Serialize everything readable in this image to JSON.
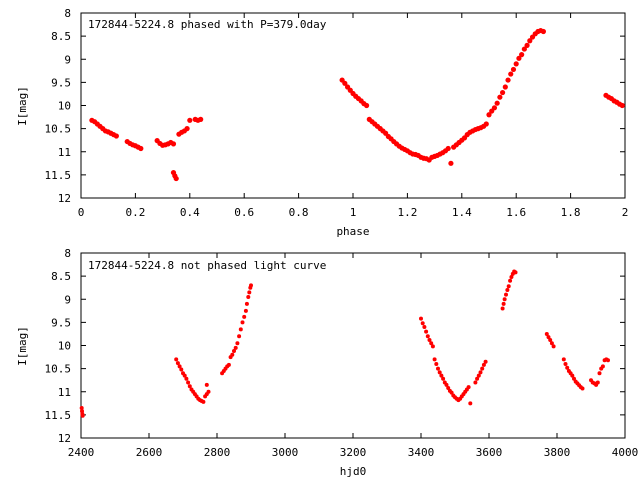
{
  "chart_data": [
    {
      "type": "scatter",
      "title": "172844-5224.8 phased with P=379.0day",
      "xlabel": "phase",
      "ylabel": "I[mag]",
      "xlim": [
        0,
        2
      ],
      "ylim": [
        12,
        8
      ],
      "y_inverted": true,
      "xticks": [
        "0",
        "0.2",
        "0.4",
        "0.6",
        "0.8",
        "1",
        "1.2",
        "1.4",
        "1.6",
        "1.8",
        "2"
      ],
      "yticks": [
        "8",
        "8.5",
        "9",
        "9.5",
        "10",
        "10.5",
        "11",
        "11.5",
        "12"
      ],
      "marker_color": "#ff0000",
      "grid": false,
      "points": [
        [
          0.04,
          10.32
        ],
        [
          0.05,
          10.35
        ],
        [
          0.06,
          10.4
        ],
        [
          0.07,
          10.45
        ],
        [
          0.08,
          10.5
        ],
        [
          0.09,
          10.55
        ],
        [
          0.1,
          10.57
        ],
        [
          0.11,
          10.6
        ],
        [
          0.12,
          10.63
        ],
        [
          0.13,
          10.66
        ],
        [
          0.17,
          10.78
        ],
        [
          0.18,
          10.82
        ],
        [
          0.19,
          10.85
        ],
        [
          0.2,
          10.87
        ],
        [
          0.21,
          10.9
        ],
        [
          0.22,
          10.93
        ],
        [
          0.28,
          10.76
        ],
        [
          0.29,
          10.82
        ],
        [
          0.3,
          10.86
        ],
        [
          0.31,
          10.85
        ],
        [
          0.32,
          10.83
        ],
        [
          0.33,
          10.8
        ],
        [
          0.34,
          10.83
        ],
        [
          0.34,
          11.45
        ],
        [
          0.345,
          11.52
        ],
        [
          0.35,
          11.58
        ],
        [
          0.36,
          10.62
        ],
        [
          0.37,
          10.58
        ],
        [
          0.38,
          10.55
        ],
        [
          0.39,
          10.5
        ],
        [
          0.4,
          10.32
        ],
        [
          0.42,
          10.3
        ],
        [
          0.43,
          10.32
        ],
        [
          0.44,
          10.3
        ],
        [
          0.96,
          9.45
        ],
        [
          0.97,
          9.52
        ],
        [
          0.98,
          9.6
        ],
        [
          0.99,
          9.67
        ],
        [
          1.0,
          9.74
        ],
        [
          1.01,
          9.8
        ],
        [
          1.02,
          9.85
        ],
        [
          1.03,
          9.9
        ],
        [
          1.04,
          9.96
        ],
        [
          1.05,
          10.0
        ],
        [
          1.06,
          10.3
        ],
        [
          1.07,
          10.35
        ],
        [
          1.08,
          10.4
        ],
        [
          1.09,
          10.45
        ],
        [
          1.1,
          10.5
        ],
        [
          1.11,
          10.55
        ],
        [
          1.12,
          10.6
        ],
        [
          1.13,
          10.67
        ],
        [
          1.14,
          10.72
        ],
        [
          1.15,
          10.78
        ],
        [
          1.16,
          10.83
        ],
        [
          1.17,
          10.88
        ],
        [
          1.18,
          10.92
        ],
        [
          1.19,
          10.95
        ],
        [
          1.2,
          10.98
        ],
        [
          1.21,
          11.02
        ],
        [
          1.22,
          11.05
        ],
        [
          1.23,
          11.06
        ],
        [
          1.24,
          11.08
        ],
        [
          1.25,
          11.12
        ],
        [
          1.26,
          11.14
        ],
        [
          1.27,
          11.15
        ],
        [
          1.28,
          11.18
        ],
        [
          1.29,
          11.12
        ],
        [
          1.3,
          11.1
        ],
        [
          1.31,
          11.08
        ],
        [
          1.32,
          11.05
        ],
        [
          1.33,
          11.02
        ],
        [
          1.34,
          10.98
        ],
        [
          1.35,
          10.93
        ],
        [
          1.36,
          11.25
        ],
        [
          1.37,
          10.9
        ],
        [
          1.38,
          10.85
        ],
        [
          1.39,
          10.8
        ],
        [
          1.4,
          10.75
        ],
        [
          1.41,
          10.7
        ],
        [
          1.42,
          10.63
        ],
        [
          1.43,
          10.58
        ],
        [
          1.44,
          10.55
        ],
        [
          1.45,
          10.52
        ],
        [
          1.46,
          10.5
        ],
        [
          1.47,
          10.48
        ],
        [
          1.48,
          10.45
        ],
        [
          1.49,
          10.4
        ],
        [
          1.5,
          10.2
        ],
        [
          1.51,
          10.12
        ],
        [
          1.52,
          10.05
        ],
        [
          1.53,
          9.95
        ],
        [
          1.54,
          9.82
        ],
        [
          1.55,
          9.72
        ],
        [
          1.56,
          9.6
        ],
        [
          1.57,
          9.45
        ],
        [
          1.58,
          9.32
        ],
        [
          1.59,
          9.22
        ],
        [
          1.6,
          9.1
        ],
        [
          1.61,
          8.98
        ],
        [
          1.62,
          8.9
        ],
        [
          1.63,
          8.78
        ],
        [
          1.64,
          8.7
        ],
        [
          1.65,
          8.6
        ],
        [
          1.66,
          8.52
        ],
        [
          1.67,
          8.45
        ],
        [
          1.68,
          8.4
        ],
        [
          1.69,
          8.38
        ],
        [
          1.7,
          8.4
        ],
        [
          1.93,
          9.78
        ],
        [
          1.94,
          9.82
        ],
        [
          1.95,
          9.85
        ],
        [
          1.96,
          9.9
        ],
        [
          1.97,
          9.93
        ],
        [
          1.98,
          9.97
        ],
        [
          1.99,
          10.0
        ]
      ]
    },
    {
      "type": "scatter",
      "title": "172844-5224.8 not phased light curve",
      "xlabel": "hjd0",
      "ylabel": "I[mag]",
      "xlim": [
        2400,
        4000
      ],
      "ylim": [
        12,
        8
      ],
      "y_inverted": true,
      "xticks": [
        "2400",
        "2600",
        "2800",
        "3000",
        "3200",
        "3400",
        "3600",
        "3800",
        "4000"
      ],
      "yticks": [
        "8",
        "8.5",
        "9",
        "9.5",
        "10",
        "10.5",
        "11",
        "11.5",
        "12"
      ],
      "marker_color": "#ff0000",
      "grid": false,
      "points": [
        [
          2402,
          11.35
        ],
        [
          2403,
          11.42
        ],
        [
          2404,
          11.48
        ],
        [
          2405,
          11.52
        ],
        [
          2680,
          10.3
        ],
        [
          2685,
          10.38
        ],
        [
          2690,
          10.45
        ],
        [
          2695,
          10.52
        ],
        [
          2700,
          10.6
        ],
        [
          2705,
          10.65
        ],
        [
          2710,
          10.72
        ],
        [
          2715,
          10.8
        ],
        [
          2720,
          10.88
        ],
        [
          2725,
          10.95
        ],
        [
          2730,
          11.0
        ],
        [
          2735,
          11.05
        ],
        [
          2740,
          11.1
        ],
        [
          2745,
          11.15
        ],
        [
          2750,
          11.18
        ],
        [
          2755,
          11.2
        ],
        [
          2760,
          11.22
        ],
        [
          2765,
          11.1
        ],
        [
          2770,
          11.05
        ],
        [
          2775,
          11.0
        ],
        [
          2770,
          10.85
        ],
        [
          2815,
          10.6
        ],
        [
          2820,
          10.55
        ],
        [
          2825,
          10.5
        ],
        [
          2830,
          10.45
        ],
        [
          2835,
          10.42
        ],
        [
          2840,
          10.25
        ],
        [
          2845,
          10.2
        ],
        [
          2850,
          10.12
        ],
        [
          2855,
          10.05
        ],
        [
          2860,
          9.95
        ],
        [
          2865,
          9.8
        ],
        [
          2870,
          9.65
        ],
        [
          2875,
          9.5
        ],
        [
          2880,
          9.38
        ],
        [
          2885,
          9.25
        ],
        [
          2888,
          9.1
        ],
        [
          2892,
          8.95
        ],
        [
          2895,
          8.85
        ],
        [
          2898,
          8.75
        ],
        [
          2900,
          8.7
        ],
        [
          3400,
          9.42
        ],
        [
          3405,
          9.52
        ],
        [
          3410,
          9.6
        ],
        [
          3415,
          9.7
        ],
        [
          3420,
          9.8
        ],
        [
          3425,
          9.88
        ],
        [
          3430,
          9.95
        ],
        [
          3435,
          10.02
        ],
        [
          3440,
          10.3
        ],
        [
          3445,
          10.4
        ],
        [
          3450,
          10.5
        ],
        [
          3455,
          10.58
        ],
        [
          3460,
          10.65
        ],
        [
          3465,
          10.72
        ],
        [
          3470,
          10.8
        ],
        [
          3475,
          10.85
        ],
        [
          3480,
          10.92
        ],
        [
          3485,
          10.98
        ],
        [
          3490,
          11.02
        ],
        [
          3495,
          11.08
        ],
        [
          3500,
          11.12
        ],
        [
          3505,
          11.15
        ],
        [
          3510,
          11.18
        ],
        [
          3515,
          11.15
        ],
        [
          3520,
          11.1
        ],
        [
          3525,
          11.05
        ],
        [
          3530,
          11.0
        ],
        [
          3535,
          10.95
        ],
        [
          3540,
          10.9
        ],
        [
          3545,
          11.25
        ],
        [
          3560,
          10.8
        ],
        [
          3565,
          10.72
        ],
        [
          3570,
          10.65
        ],
        [
          3575,
          10.58
        ],
        [
          3580,
          10.5
        ],
        [
          3585,
          10.42
        ],
        [
          3590,
          10.35
        ],
        [
          3640,
          9.2
        ],
        [
          3643,
          9.1
        ],
        [
          3646,
          9.0
        ],
        [
          3650,
          8.9
        ],
        [
          3654,
          8.8
        ],
        [
          3658,
          8.72
        ],
        [
          3662,
          8.6
        ],
        [
          3666,
          8.52
        ],
        [
          3670,
          8.45
        ],
        [
          3674,
          8.4
        ],
        [
          3678,
          8.42
        ],
        [
          3770,
          9.75
        ],
        [
          3775,
          9.82
        ],
        [
          3780,
          9.88
        ],
        [
          3785,
          9.95
        ],
        [
          3790,
          10.02
        ],
        [
          3820,
          10.3
        ],
        [
          3825,
          10.4
        ],
        [
          3830,
          10.48
        ],
        [
          3835,
          10.55
        ],
        [
          3840,
          10.6
        ],
        [
          3845,
          10.65
        ],
        [
          3850,
          10.72
        ],
        [
          3855,
          10.78
        ],
        [
          3860,
          10.82
        ],
        [
          3865,
          10.86
        ],
        [
          3870,
          10.9
        ],
        [
          3875,
          10.93
        ],
        [
          3900,
          10.75
        ],
        [
          3905,
          10.8
        ],
        [
          3910,
          10.82
        ],
        [
          3915,
          10.85
        ],
        [
          3920,
          10.8
        ],
        [
          3925,
          10.6
        ],
        [
          3930,
          10.5
        ],
        [
          3935,
          10.45
        ],
        [
          3940,
          10.32
        ],
        [
          3945,
          10.3
        ],
        [
          3950,
          10.32
        ]
      ]
    }
  ]
}
